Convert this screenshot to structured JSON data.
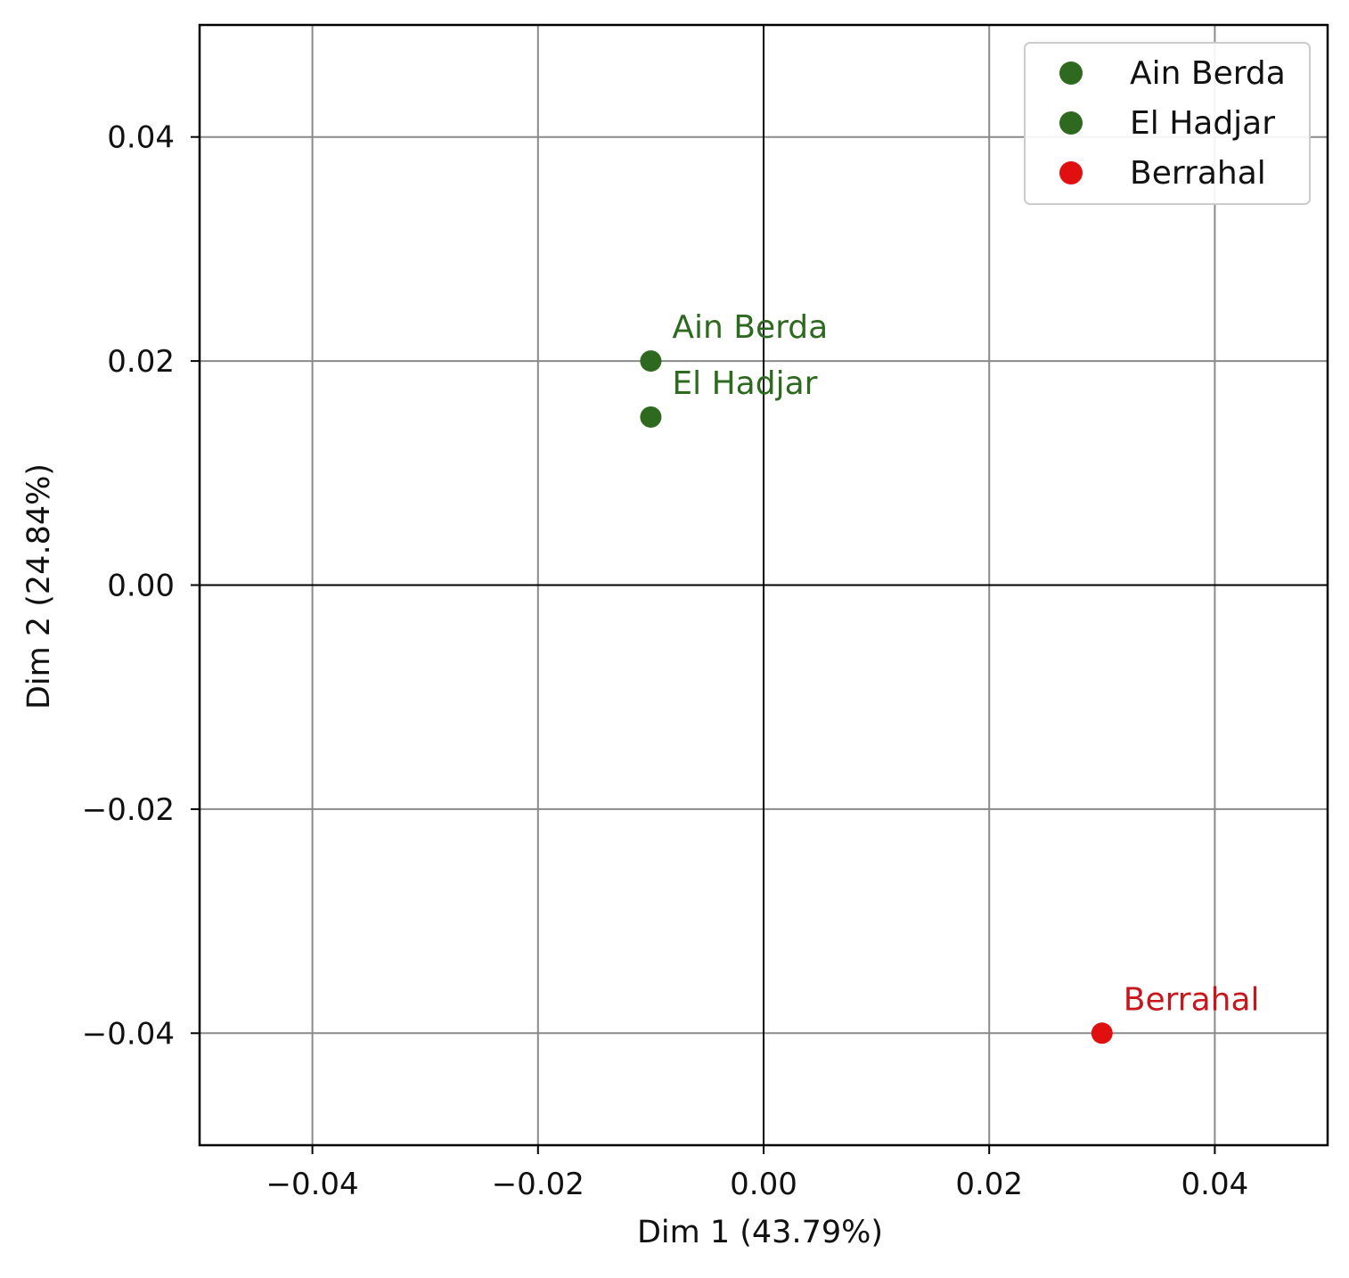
{
  "chart_data": {
    "type": "scatter",
    "title": "",
    "xlabel": "Dim 1 (43.79%)",
    "ylabel": "Dim 2 (24.84%)",
    "xlim": [
      -0.05,
      0.05
    ],
    "ylim": [
      -0.05,
      0.05
    ],
    "xticks": [
      -0.04,
      -0.02,
      0.0,
      0.02,
      0.04
    ],
    "yticks": [
      -0.04,
      -0.02,
      0.0,
      0.02,
      0.04
    ],
    "xtick_labels": [
      "−0.04",
      "−0.02",
      "0.00",
      "0.02",
      "0.04"
    ],
    "ytick_labels": [
      "−0.04",
      "−0.02",
      "0.00",
      "0.02",
      "0.04"
    ],
    "grid": true,
    "reference_lines": {
      "x": 0.0,
      "y": 0.0
    },
    "legend_position": "top-right",
    "series": [
      {
        "name": "Ain Berda",
        "x": -0.01,
        "y": 0.02,
        "color": "#2d6a1f"
      },
      {
        "name": "El Hadjar",
        "x": -0.01,
        "y": 0.015,
        "color": "#2d6a1f"
      },
      {
        "name": "Berrahal",
        "x": 0.03,
        "y": -0.04,
        "color": "#e01010"
      }
    ],
    "label_colors": {
      "Ain Berda": "#2d6a1f",
      "El Hadjar": "#2d6a1f",
      "Berrahal": "#c8161d"
    }
  }
}
